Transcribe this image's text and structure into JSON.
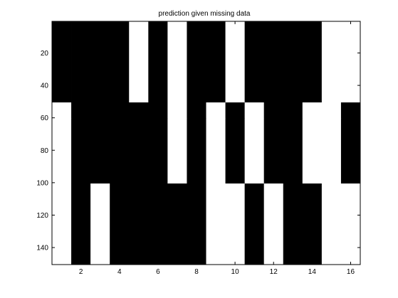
{
  "chart_data": {
    "type": "heatmap",
    "title": "prediction given missing data",
    "xlabel": "",
    "ylabel": "",
    "colormap": {
      "0": "#000000",
      "1": "#ffffff"
    },
    "x": [
      1,
      2,
      3,
      4,
      5,
      6,
      7,
      8,
      9,
      10,
      11,
      12,
      13,
      14,
      15,
      16
    ],
    "xlim": [
      0.5,
      16.5
    ],
    "ylim": [
      0.5,
      150.5
    ],
    "y_direction": "reverse",
    "xticks": [
      2,
      4,
      6,
      8,
      10,
      12,
      14,
      16
    ],
    "yticks": [
      20,
      40,
      60,
      80,
      100,
      120,
      140
    ],
    "row_bands": [
      {
        "rows": [
          1,
          50
        ],
        "values": [
          0,
          0,
          0,
          0,
          1,
          0,
          1,
          0,
          0,
          1,
          0,
          0,
          0,
          0,
          1,
          1
        ]
      },
      {
        "rows": [
          51,
          60
        ],
        "values": [
          1,
          0,
          0,
          0,
          0,
          0,
          1,
          0,
          1,
          0,
          1,
          0,
          0,
          1,
          1,
          0
        ]
      },
      {
        "rows": [
          61,
          100
        ],
        "values": [
          1,
          0,
          0,
          0,
          0,
          0,
          1,
          0,
          1,
          0,
          1,
          0,
          0,
          1,
          1,
          0
        ]
      },
      {
        "rows": [
          101,
          150
        ],
        "values": [
          1,
          0,
          1,
          0,
          0,
          0,
          0,
          0,
          1,
          1,
          0,
          1,
          0,
          0,
          1,
          1
        ]
      }
    ]
  }
}
